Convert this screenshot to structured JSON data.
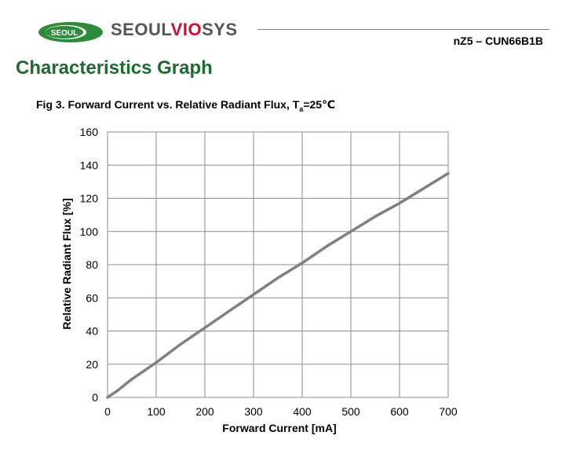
{
  "brand": {
    "oval_text": "SEOUL",
    "name_part1": "SEOUL",
    "name_part2": "VIO",
    "name_part3": "SYS",
    "colors": {
      "green": "#2e8b3a",
      "red": "#c8102e",
      "grey": "#555555"
    }
  },
  "model": "nZ5 – CUN66B1B",
  "section_title": "Characteristics Graph",
  "figure": {
    "caption_prefix": "Fig 3. Forward Current vs. Relative Radiant Flux, T",
    "caption_sub": "a",
    "caption_suffix": "=25℃"
  },
  "chart_data": {
    "type": "line",
    "xlabel": "Forward Current [mA]",
    "ylabel": "Relative Radiant Flux [%]",
    "xlim": [
      0,
      700
    ],
    "ylim": [
      0,
      160
    ],
    "xticks": [
      0,
      100,
      200,
      300,
      400,
      500,
      600,
      700
    ],
    "yticks": [
      0,
      20,
      40,
      60,
      80,
      100,
      120,
      140,
      160
    ],
    "grid": true,
    "line_color": "#808080",
    "series": [
      {
        "x": [
          0,
          20,
          50,
          100,
          150,
          200,
          250,
          300,
          350,
          400,
          450,
          500,
          550,
          600,
          650,
          700
        ],
        "values": [
          0,
          4,
          11,
          21,
          32,
          42,
          52,
          62,
          72,
          81,
          91,
          100,
          109,
          117,
          126,
          135
        ]
      }
    ]
  }
}
